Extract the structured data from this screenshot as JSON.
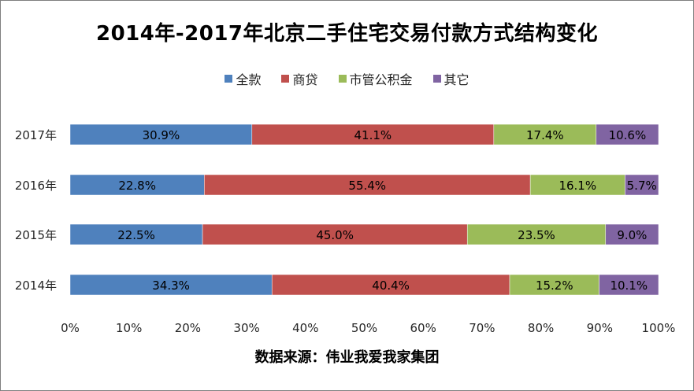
{
  "title": "2014年-2017年北京二手住宅交易付款方式结构变化",
  "source": "数据来源：伟业我爱我家集团",
  "chart_data": {
    "type": "bar",
    "orientation": "horizontal",
    "stacked": "percent",
    "categories": [
      "2017年",
      "2016年",
      "2015年",
      "2014年"
    ],
    "series": [
      {
        "name": "全款",
        "color": "#4f81bd",
        "values": [
          30.9,
          22.8,
          22.5,
          34.3
        ]
      },
      {
        "name": "商贷",
        "color": "#c0504d",
        "values": [
          41.1,
          55.4,
          45.0,
          40.4
        ]
      },
      {
        "name": "市管公积金",
        "color": "#9bbb59",
        "values": [
          17.4,
          16.1,
          23.5,
          15.2
        ]
      },
      {
        "name": "其它",
        "color": "#8064a2",
        "values": [
          10.6,
          5.7,
          9.0,
          10.1
        ]
      }
    ],
    "xlim": [
      0,
      100
    ],
    "xticks": [
      "0%",
      "10%",
      "20%",
      "30%",
      "40%",
      "50%",
      "60%",
      "70%",
      "80%",
      "90%",
      "100%"
    ],
    "legend": "top",
    "grid": false
  }
}
